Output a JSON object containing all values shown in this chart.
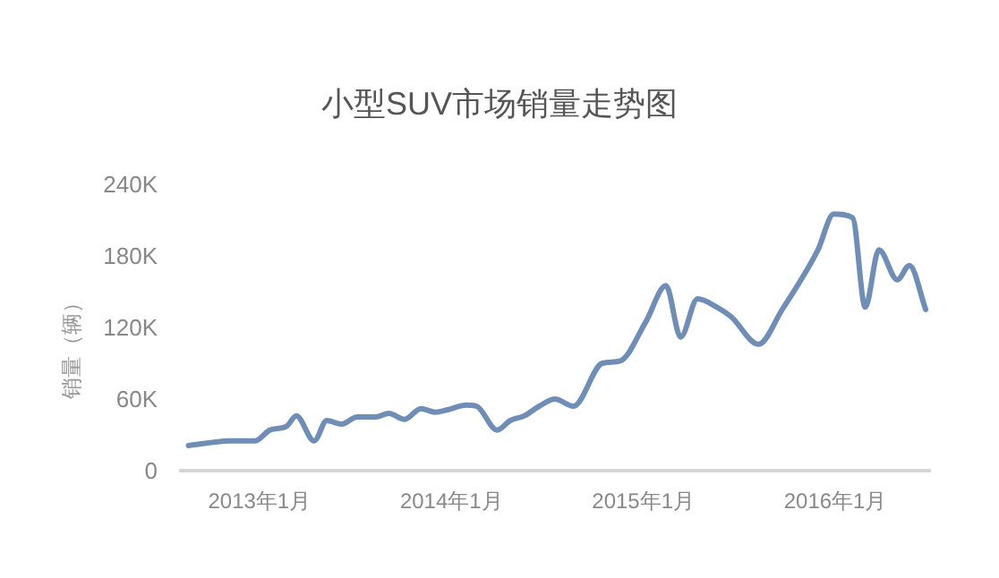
{
  "chart_data": {
    "type": "line",
    "title": "小型SUV市场销量走势图",
    "ylabel": "销量（辆）",
    "x": [
      "2012-08-19",
      "2012-11-10",
      "2012-12-24",
      "2013-01-21",
      "2013-02-21",
      "2013-03-12",
      "2013-04-15",
      "2013-05-09",
      "2013-06-06",
      "2013-07-06",
      "2013-08-10",
      "2013-09-04",
      "2013-10-04",
      "2013-11-04",
      "2013-12-01",
      "2013-12-25",
      "2014-01-29",
      "2014-02-18",
      "2014-03-29",
      "2014-04-23",
      "2014-05-20",
      "2014-06-17",
      "2014-07-17",
      "2014-08-21",
      "2014-10-15",
      "2014-11-18",
      "2015-01-06",
      "2015-02-13",
      "2015-03-13",
      "2015-04-14",
      "2015-05-21",
      "2015-06-17",
      "2015-08-08",
      "2015-09-22",
      "2015-11-29",
      "2015-12-29",
      "2016-02-03",
      "2016-02-27",
      "2016-03-24",
      "2016-04-28",
      "2016-05-21",
      "2016-06-21"
    ],
    "series": [
      {
        "color": "#6f8db5",
        "values": [
          21000,
          25000,
          25000,
          34000,
          37000,
          46000,
          25000,
          42000,
          39000,
          45000,
          45000,
          48000,
          43000,
          52000,
          49000,
          51000,
          55000,
          54000,
          34000,
          42000,
          46000,
          54000,
          60000,
          54000,
          90000,
          92000,
          125000,
          155000,
          112000,
          144000,
          137000,
          129000,
          106000,
          135000,
          185000,
          215000,
          212000,
          137000,
          185000,
          160000,
          172000,
          135000
        ]
      }
    ],
    "xlim": [
      "2012-08-01",
      "2016-07-01"
    ],
    "xticks": [
      {
        "value": "2013-01-01",
        "label": "2013年1月"
      },
      {
        "value": "2014-01-01",
        "label": "2014年1月"
      },
      {
        "value": "2015-01-01",
        "label": "2015年1月"
      },
      {
        "value": "2016-01-01",
        "label": "2016年1月"
      }
    ],
    "ylim": [
      0,
      240000
    ],
    "yticks": [
      {
        "value": 0,
        "label": "0"
      },
      {
        "value": 60000,
        "label": "60K"
      },
      {
        "value": 120000,
        "label": "120K"
      },
      {
        "value": 180000,
        "label": "180K"
      },
      {
        "value": 240000,
        "label": "240K"
      }
    ],
    "grid": false,
    "marker": "none",
    "line_style": "solid"
  }
}
